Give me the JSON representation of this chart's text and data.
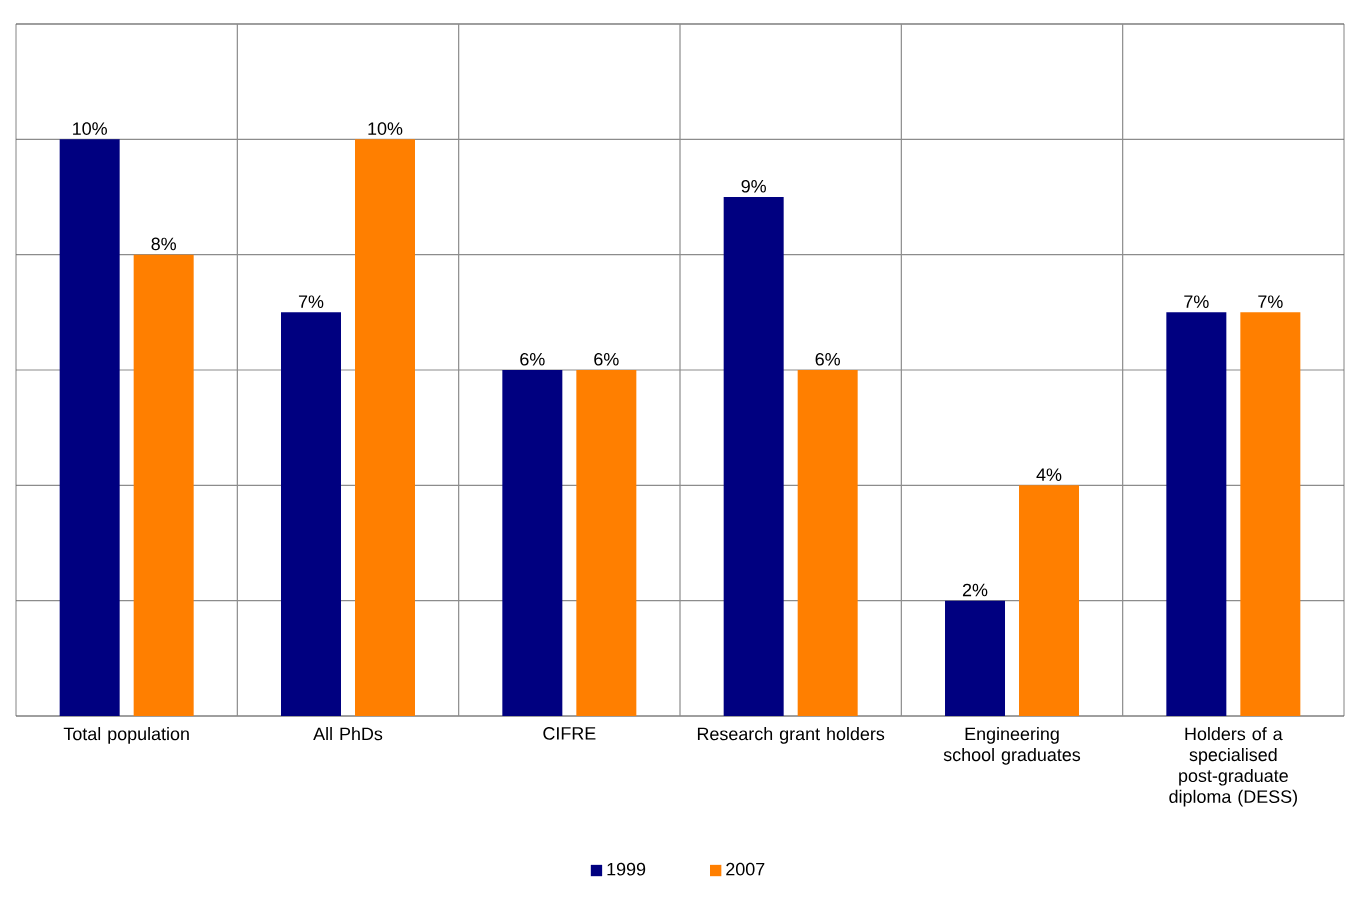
{
  "chart_data": {
    "type": "bar",
    "categories": [
      "Total population",
      "All PhDs",
      "CIFRE",
      "Research grant holders",
      "Engineering school graduates",
      "Holders of a specialised post-graduate diploma (DESS)"
    ],
    "series": [
      {
        "name": "1999",
        "color": "#000080",
        "values": [
          10,
          7,
          6,
          9,
          2,
          7
        ],
        "value_labels": [
          "10%",
          "7%",
          "6%",
          "9%",
          "2%",
          "7%"
        ]
      },
      {
        "name": "2007",
        "color": "#ff7f00",
        "values": [
          8,
          10,
          6,
          6,
          4,
          7
        ],
        "value_labels": [
          "8%",
          "10%",
          "6%",
          "6%",
          "4%",
          "7%"
        ]
      }
    ],
    "ylim": [
      0,
      12
    ],
    "yticks": [
      {
        "value": 0,
        "label": null
      },
      {
        "value": 2,
        "label": null
      },
      {
        "value": 4,
        "label": null
      },
      {
        "value": 6,
        "label": null
      },
      {
        "value": 8,
        "label": null
      },
      {
        "value": 10,
        "label": null
      },
      {
        "value": 12,
        "label": null
      }
    ],
    "tick_labels": "x",
    "grid": true,
    "legend": "bottom"
  }
}
